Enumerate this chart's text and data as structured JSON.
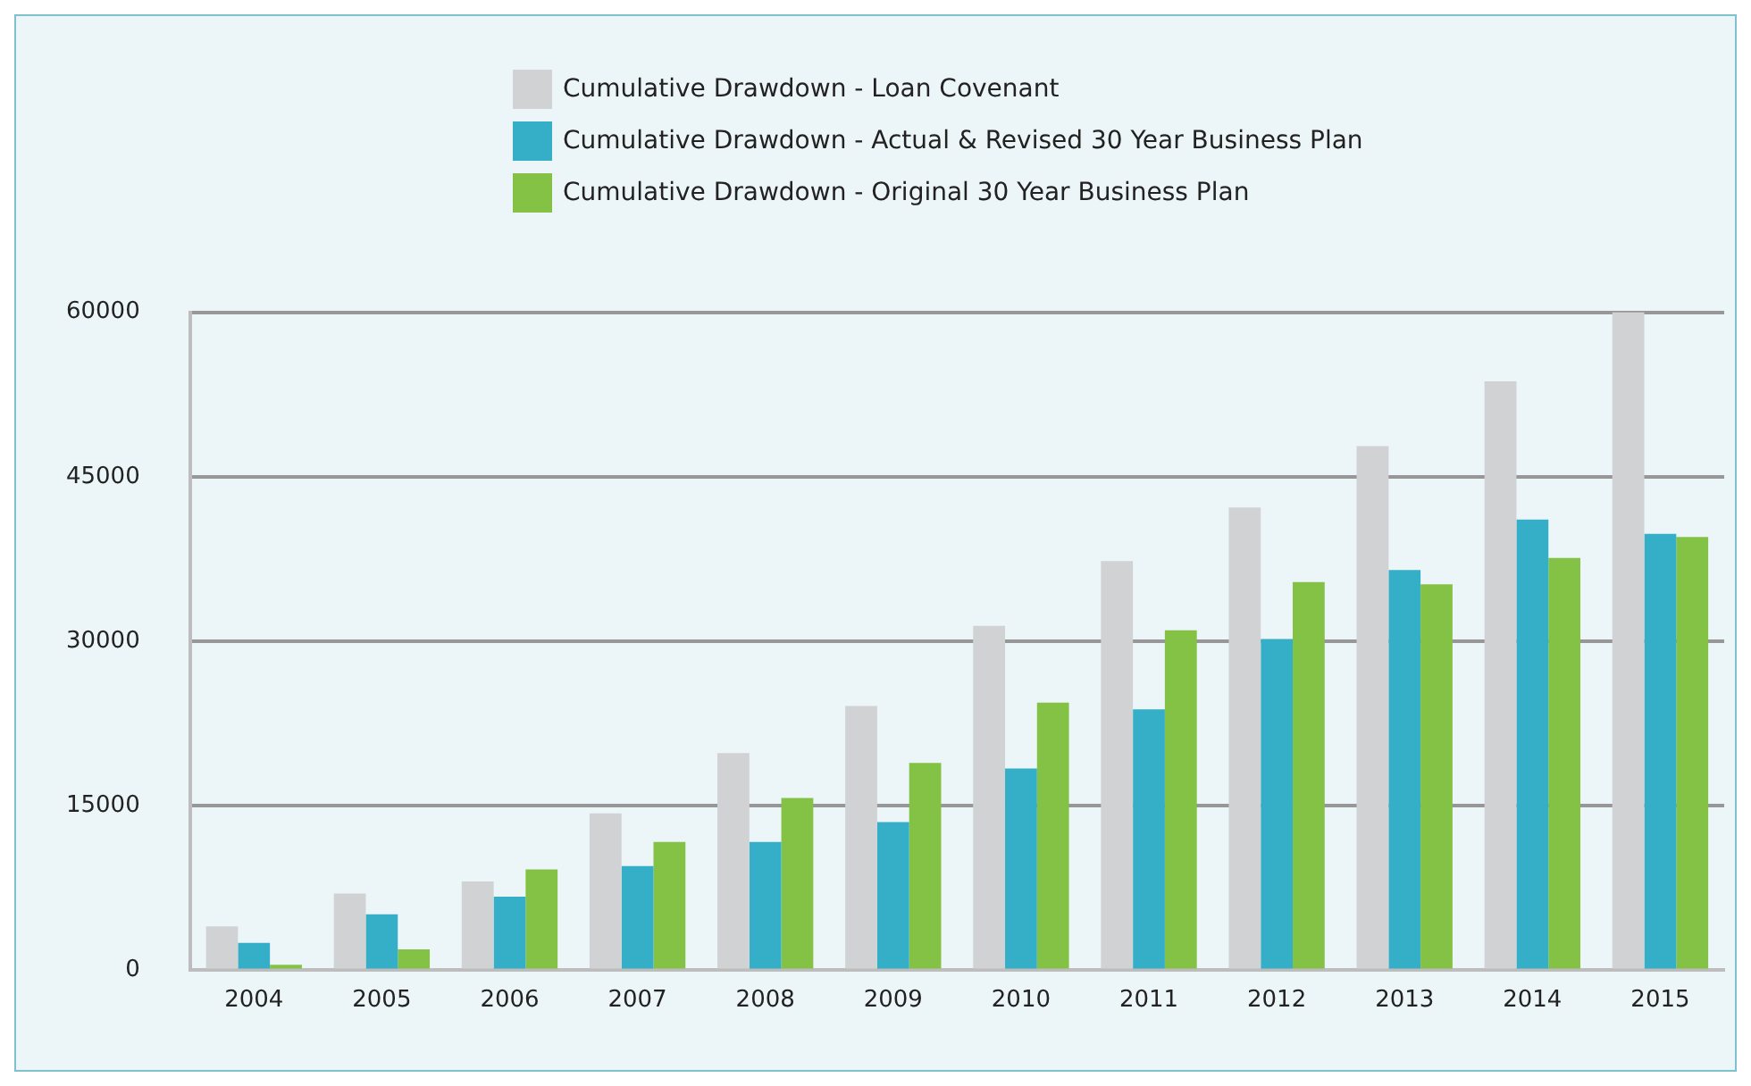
{
  "chart_data": {
    "type": "bar",
    "categories": [
      "2004",
      "2005",
      "2006",
      "2007",
      "2008",
      "2009",
      "2010",
      "2011",
      "2012",
      "2013",
      "2014",
      "2015"
    ],
    "series": [
      {
        "name": "Cumulative Drawdown - Loan Covenant",
        "color": "#d1d2d4",
        "values": [
          4000,
          7000,
          8100,
          14300,
          19800,
          24100,
          31400,
          37300,
          42200,
          47800,
          53700,
          60000
        ]
      },
      {
        "name": "Cumulative Drawdown - Actual & Revised 30 Year Business Plan",
        "color": "#35aec8",
        "values": [
          2500,
          5100,
          6700,
          9500,
          11700,
          13500,
          18400,
          23800,
          30200,
          36500,
          41100,
          39800
        ]
      },
      {
        "name": "Cumulative Drawdown - Original 30 Year Business Plan",
        "color": "#84c245",
        "values": [
          500,
          1900,
          9200,
          11700,
          15700,
          18900,
          24400,
          31000,
          35400,
          35200,
          37600,
          39500
        ]
      }
    ],
    "ylim": [
      0,
      60000
    ],
    "yticks": [
      0,
      15000,
      30000,
      45000,
      60000
    ],
    "grid": "y",
    "legend": "top"
  }
}
